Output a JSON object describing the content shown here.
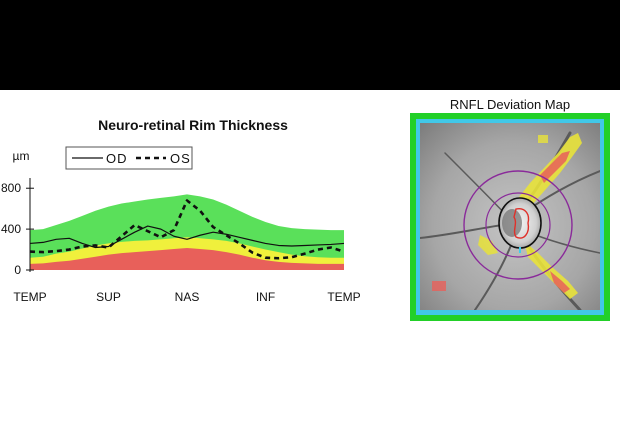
{
  "chart_data": {
    "type": "area",
    "title": "Neuro-retinal Rim Thickness",
    "ylabel": "µm",
    "ytick_labels": [
      "0",
      "400",
      "800"
    ],
    "yticks": [
      0,
      400,
      800
    ],
    "ylim": [
      0,
      900
    ],
    "xlim": [
      0,
      360
    ],
    "x_tick_positions": [
      0,
      90,
      180,
      270,
      360
    ],
    "categories": [
      "TEMP",
      "SUP",
      "NAS",
      "INF",
      "TEMP"
    ],
    "x": [
      0,
      15,
      30,
      45,
      60,
      75,
      90,
      105,
      120,
      135,
      150,
      165,
      180,
      195,
      210,
      225,
      240,
      255,
      270,
      285,
      300,
      315,
      330,
      345,
      360
    ],
    "bands": [
      {
        "color": "#e8605a",
        "values": [
          60,
          65,
          80,
          90,
          110,
          130,
          150,
          165,
          175,
          185,
          195,
          205,
          215,
          205,
          195,
          175,
          150,
          120,
          95,
          80,
          70,
          65,
          60,
          60,
          60
        ]
      },
      {
        "color": "#f0f03c",
        "values": [
          120,
          130,
          160,
          180,
          210,
          240,
          260,
          275,
          285,
          290,
          300,
          310,
          320,
          310,
          300,
          285,
          260,
          230,
          200,
          175,
          150,
          135,
          125,
          120,
          120
        ]
      },
      {
        "color": "#5ae05a",
        "values": [
          390,
          400,
          440,
          480,
          530,
          580,
          620,
          650,
          670,
          690,
          705,
          720,
          740,
          720,
          690,
          640,
          580,
          520,
          470,
          430,
          410,
          400,
          395,
          390,
          390
        ]
      }
    ],
    "series": [
      {
        "name": "OD",
        "dash": false,
        "values": [
          260,
          270,
          300,
          310,
          260,
          220,
          230,
          300,
          370,
          430,
          400,
          330,
          300,
          340,
          370,
          350,
          320,
          290,
          260,
          240,
          235,
          240,
          245,
          250,
          260
        ]
      },
      {
        "name": "OS",
        "dash": true,
        "values": [
          180,
          175,
          185,
          200,
          230,
          240,
          220,
          330,
          440,
          380,
          320,
          390,
          680,
          580,
          420,
          340,
          260,
          170,
          120,
          115,
          125,
          160,
          200,
          220,
          180
        ]
      }
    ],
    "legend_position": "top"
  },
  "map": {
    "title": "RNFL Deviation Map"
  }
}
